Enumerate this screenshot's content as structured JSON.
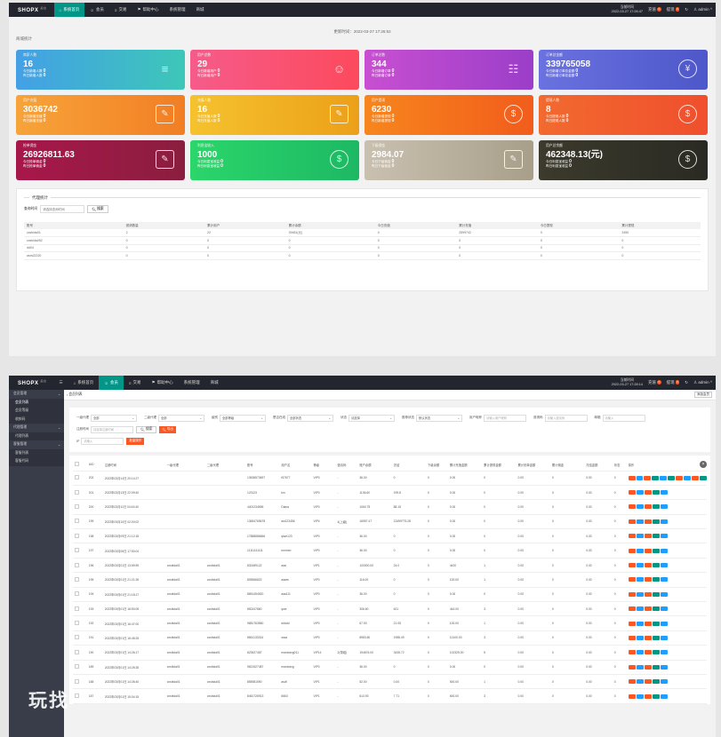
{
  "screen1": {
    "logo": "SHOPX",
    "logo_sup": "后台",
    "nav": [
      {
        "label": "系统首页",
        "icon": "home-icon",
        "active": true
      },
      {
        "label": "会员",
        "icon": "user-icon",
        "active": false
      },
      {
        "label": "交易",
        "icon": "trade-icon",
        "active": false
      },
      {
        "label": "帮助中心",
        "icon": "flag-icon",
        "active": false
      },
      {
        "label": "系统管理",
        "icon": "",
        "active": false
      },
      {
        "label": "商城",
        "icon": "",
        "active": false
      }
    ],
    "time_label": "当前时间",
    "time_value": "2022-03-27 17:26:47",
    "notice_label": "充值",
    "notice_badge": "0",
    "tixian_label": "提现",
    "tixian_badge": "0",
    "admin": "admin",
    "update_time": "更新时间：2022-03-27 17:26:52",
    "section_title": "商城统计",
    "cards": [
      {
        "label": "商家人数",
        "value": "16",
        "sub1_label": "今日新增人数",
        "sub1_value": "0",
        "sub2_label": "昨日新增人数",
        "sub2_value": "0",
        "icon": "layers-icon",
        "color1": "#43a0e6",
        "color2": "#3dc7b8"
      },
      {
        "label": "用户总数",
        "value": "29",
        "sub1_label": "今日新增用户",
        "sub1_value": "0",
        "sub2_label": "昨日新增用户",
        "sub2_value": "0",
        "icon": "user-outline-icon",
        "color1": "#f65b8a",
        "color2": "#fc4a5d"
      },
      {
        "label": "订单总数",
        "value": "344",
        "sub1_label": "今日新增订单",
        "sub1_value": "0",
        "sub2_label": "昨日新增订单",
        "sub2_value": "0",
        "icon": "book-icon",
        "color1": "#c84fd1",
        "color2": "#9b3ec9"
      },
      {
        "label": "订单总金额",
        "value": "339765058",
        "sub1_label": "今日新增订单总金额",
        "sub1_value": "0",
        "sub2_label": "昨日新增订单总金额",
        "sub2_value": "0",
        "icon": "yen-icon",
        "color1": "#6a72e0",
        "color2": "#4e57c9"
      },
      {
        "label": "用户充值",
        "value": "3036742",
        "sub1_label": "今日新增充值",
        "sub1_value": "0",
        "sub2_label": "昨日新增充值",
        "sub2_value": "0",
        "icon": "edit-icon",
        "color1": "#f7a43a",
        "color2": "#f27e24"
      },
      {
        "label": "充值人数",
        "value": "16",
        "sub1_label": "今日充值人数",
        "sub1_value": "0",
        "sub2_label": "昨日充值人数",
        "sub2_value": "0",
        "icon": "edit-icon",
        "color1": "#f5c22e",
        "color2": "#eca019"
      },
      {
        "label": "用户提现",
        "value": "6230",
        "sub1_label": "今日新增提现",
        "sub1_value": "0",
        "sub2_label": "昨日新增提现",
        "sub2_value": "0",
        "icon": "dollar-icon",
        "color1": "#f7861d",
        "color2": "#f25c1c"
      },
      {
        "label": "提现人数",
        "value": "8",
        "sub1_label": "今日提现人数",
        "sub1_value": "0",
        "sub2_label": "昨日提现人数",
        "sub2_value": "0",
        "icon": "dollar-icon",
        "color1": "#f26a2f",
        "color2": "#f04f2d"
      },
      {
        "label": "抢单佣金",
        "value": "26926811.63",
        "sub1_label": "今日抢单佣金",
        "sub1_value": "0",
        "sub2_label": "昨日抢单佣金",
        "sub2_value": "0",
        "icon": "edit-icon",
        "color1": "#a8174a",
        "color2": "#8a1e3f"
      },
      {
        "label": "利息宝收入",
        "value": "1000",
        "sub1_label": "今日利息宝收益",
        "sub1_value": "0",
        "sub2_label": "昨日利息宝收益",
        "sub2_value": "0",
        "icon": "dollar-icon",
        "color1": "#2bd66a",
        "color2": "#1db864"
      },
      {
        "label": "下级佣金",
        "value": "2984.07",
        "sub1_label": "今日下级佣金",
        "sub1_value": "0",
        "sub2_label": "昨日下级佣金",
        "sub2_value": "0",
        "icon": "edit-icon",
        "color1": "#c9c0b0",
        "color2": "#a89f8a"
      },
      {
        "label": "用户总余额",
        "value": "462348.13(元)",
        "sub1_label": "今日利息宝收益",
        "sub1_value": "0",
        "sub2_label": "昨日利息宝收益",
        "sub2_value": "0",
        "icon": "dollar-icon",
        "color1": "#3c3a2c",
        "color2": "#2a2a24"
      }
    ],
    "agent": {
      "title": "代理统计",
      "time_label": "查询时间",
      "time_placeholder": "请选择查询时间",
      "search_label": "搜索",
      "columns": [
        "账号",
        "邀请数量",
        "累计用户",
        "累计余额",
        "今日充值",
        "累计充值",
        "今日提现",
        "累计提现"
      ],
      "rows": [
        [
          "cxshida01",
          "2",
          "22",
          "39451(元)",
          "0",
          "2599742",
          "0",
          "2450"
        ],
        [
          "cxshida052",
          "0",
          "0",
          "0",
          "0",
          "0",
          "0",
          "0"
        ],
        [
          "dd04",
          "0",
          "0",
          "0",
          "0",
          "0",
          "0",
          "0"
        ],
        [
          "asm22220",
          "0",
          "0",
          "0",
          "0",
          "0",
          "0",
          "0"
        ]
      ]
    }
  },
  "screen2": {
    "time_value": "2022-03-27 17:28:14",
    "side": [
      {
        "label": "会员管理",
        "sub": false,
        "active": false,
        "arrow": true
      },
      {
        "label": "会员列表",
        "sub": true,
        "active": true,
        "arrow": false
      },
      {
        "label": "会员等级",
        "sub": true,
        "active": false,
        "arrow": false
      },
      {
        "label": "收款码",
        "sub": true,
        "active": false,
        "arrow": false
      },
      {
        "label": "代理管理",
        "sub": false,
        "active": false,
        "arrow": true
      },
      {
        "label": "代理列表",
        "sub": true,
        "active": false,
        "arrow": false
      },
      {
        "label": "客服管理",
        "sub": false,
        "active": false,
        "arrow": true
      },
      {
        "label": "客服列表",
        "sub": true,
        "active": false,
        "arrow": false
      },
      {
        "label": "客服代码",
        "sub": true,
        "active": false,
        "arrow": false
      }
    ],
    "tab_label": "会员列表",
    "tab_close": "添加会员",
    "f1": [
      {
        "type": "l",
        "v": "一级代理"
      },
      {
        "type": "s",
        "v": "全部"
      },
      {
        "type": "l",
        "v": "二级代理"
      },
      {
        "type": "s",
        "v": "全部"
      },
      {
        "type": "l",
        "v": "级别"
      },
      {
        "type": "s",
        "v": "全部等级"
      },
      {
        "type": "l",
        "v": "是否在线"
      },
      {
        "type": "s",
        "v": "全部状态"
      },
      {
        "type": "l",
        "v": "状态"
      },
      {
        "type": "s",
        "v": "请选择"
      },
      {
        "type": "l",
        "v": "推荐状态"
      },
      {
        "type": "s",
        "v": "默认状态"
      },
      {
        "type": "l",
        "v": "用户昵称"
      },
      {
        "type": "i",
        "v": "请输入用户昵称"
      },
      {
        "type": "l",
        "v": "邀请码"
      },
      {
        "type": "i",
        "v": "请输入邀请码"
      },
      {
        "type": "l",
        "v": "邮箱"
      },
      {
        "type": "i",
        "v": "请输入"
      }
    ],
    "f2_label": "注册时间",
    "f2_placeholder": "请选择注册时间",
    "search": "搜索",
    "export": "导出",
    "f3_label": "IP",
    "f3_placeholder": "请输入",
    "batch": "批量操作",
    "columns": [
      "UID",
      "注册时间",
      "一级代理",
      "二级代理",
      "账号",
      "用户名",
      "等级",
      "邀请码",
      "账户余额",
      "冻结",
      "下级余额",
      "累计充值金额",
      "累计提现金额",
      "累计抢单金额",
      "累计佣金",
      "冻结金额",
      "状态",
      "操作"
    ],
    "rows": [
      [
        "202",
        "2022年03月14日 20:14:27",
        "",
        "",
        "13636573697",
        "t97677",
        "VIP0",
        "-",
        "36.00",
        "0",
        "0",
        "0.00",
        "0",
        "0.00",
        "0",
        "0.00",
        "0"
      ],
      [
        "201",
        "2022年03月13日 22:09:40",
        "",
        "",
        "123123",
        "km",
        "VIP0",
        "-",
        "1136.60",
        "199.8",
        "0",
        "0.00",
        "0",
        "0.00",
        "0",
        "0.00",
        "0"
      ],
      [
        "200",
        "2022年03月11日 04:43:40",
        "",
        "",
        "4401234596",
        "Diana",
        "VIP0",
        "-",
        "1060.75",
        "88.15",
        "0",
        "0.00",
        "0",
        "0.00",
        "0",
        "0.00",
        "0"
      ],
      [
        "199",
        "2022年03月10日 02:00:02",
        "",
        "",
        "13654765678",
        "aw123456",
        "VIP4",
        "4(上级)",
        "16957.47",
        "13499775.28",
        "0",
        "0.00",
        "0",
        "0.00",
        "0",
        "0.00",
        "0"
      ],
      [
        "198",
        "2022年03月09日 21:12:18",
        "",
        "",
        "17888886666",
        "qiwe123",
        "VIP0",
        "-",
        "36.00",
        "0",
        "0",
        "0.00",
        "0",
        "0.00",
        "0",
        "0.00",
        "0"
      ],
      [
        "197",
        "2022年03月06日 17:50:04",
        "",
        "",
        "11111111111",
        "mmmm",
        "VIP0",
        "-",
        "36.00",
        "0",
        "0",
        "0.00",
        "0",
        "0.00",
        "0",
        "0.00",
        "0"
      ],
      [
        "196",
        "2022年03月01日 13:59:59",
        "cxshida01",
        "cxshida01",
        "832489122",
        "aaa",
        "VIP1",
        "-",
        "100000.00",
        "24.0",
        "0",
        "4420",
        "1",
        "0.00",
        "0",
        "0.00",
        "0"
      ],
      [
        "195",
        "2022年03月01日 21:21:26",
        "cxshida01",
        "cxshida01",
        "805566822",
        "aaww",
        "VIP0",
        "-",
        "116.00",
        "0",
        "0",
        "100.00",
        "1",
        "0.00",
        "0",
        "0.00",
        "0"
      ],
      [
        "194",
        "2022年03月01日 21:18:17",
        "cxshida01",
        "cxshida01",
        "8651454520",
        "aaa111",
        "VIP0",
        "-",
        "36.00",
        "0",
        "0",
        "0.00",
        "0",
        "0.00",
        "0",
        "0.00",
        "0"
      ],
      [
        "193",
        "2022年03月01日 18:50:05",
        "cxshida01",
        "cxshida01",
        "852447860",
        "qwe",
        "VIP0",
        "-",
        "306.60",
        "621",
        "0",
        "444.00",
        "3",
        "0.00",
        "0",
        "0.00",
        "0"
      ],
      [
        "192",
        "2022年03月01日 16:47:00",
        "cxshida01",
        "cxshida01",
        "9681763560",
        "ddddd",
        "VIP0",
        "-",
        "67.93",
        "21.05",
        "0",
        "100.00",
        "1",
        "0.00",
        "0",
        "0.00",
        "0"
      ],
      [
        "191",
        "2022年03月01日 16:45:25",
        "cxshida01",
        "cxshida01",
        "8561133324",
        "sssa",
        "VIP0",
        "-",
        "8983.60",
        "1958.49",
        "0",
        "10100.00",
        "3",
        "0.00",
        "0",
        "0.00",
        "0"
      ],
      [
        "190",
        "2022年03月01日 14:26:17",
        "cxshida01",
        "cxshida01",
        "823527487",
        "manxiang011",
        "VIP14",
        "2(带组)",
        "194676.00",
        "3435.72",
        "0",
        "102325.00",
        "5",
        "0.00",
        "0",
        "0.00",
        "0"
      ],
      [
        "189",
        "2022年03月01日 14:25:28",
        "cxshida01",
        "cxshida01",
        "9621527487",
        "manxiang",
        "VIP0",
        "-",
        "36.00",
        "0",
        "0",
        "0.00",
        "0",
        "0.00",
        "0",
        "0.00",
        "0"
      ],
      [
        "188",
        "2022年03月01日 14:26:40",
        "cxshida01",
        "cxshida01",
        "855981590",
        "asdf",
        "VIP1",
        "-",
        "52.00",
        "0.00",
        "0",
        "500.00",
        "1",
        "0.00",
        "0",
        "0.00",
        "0"
      ],
      [
        "187",
        "2022年03月01日 15:04:15",
        "cxshida01",
        "cxshida01",
        "8461726913",
        "6663",
        "VIP1",
        "-",
        "613.93",
        "7.71",
        "0",
        "600.00",
        "3",
        "0.00",
        "0",
        "0.00",
        "0"
      ],
      [
        "186",
        "2022年03月01日 14:21:02",
        "cxshida01",
        "cxshida01",
        "9651745970",
        "12345",
        "VIP4",
        "2(带组)",
        "119336.00",
        "3640.20",
        "17047",
        "113600.00",
        "8",
        "0.00",
        "0",
        "0.00",
        "0"
      ],
      [
        "185",
        "2022年03月01日 14:15:10",
        "cxshida01",
        "cxshida01",
        "9056813258",
        "tnmy",
        "VIP0",
        "-",
        "7.30",
        "0",
        "0",
        "0.00",
        "0",
        "0.00",
        "0",
        "0.00",
        "0"
      ]
    ],
    "op_colors": [
      "#ff5722",
      "#1e9fff",
      "#ff5722",
      "#009688",
      "#1e9fff",
      "#009688"
    ],
    "watermark": "玩找"
  }
}
